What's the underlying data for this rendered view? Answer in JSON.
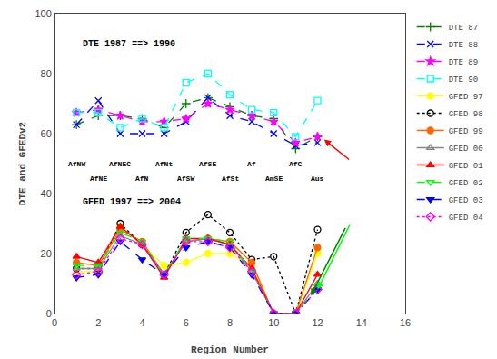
{
  "chart_data": {
    "type": "line",
    "x_label": "Region Number",
    "y_label": "DTE and GFEDv2",
    "x": [
      1,
      2,
      3,
      4,
      5,
      6,
      7,
      8,
      9,
      10,
      11,
      12
    ],
    "series": [
      {
        "name": "DTE 87",
        "color": "green",
        "marker": "plus",
        "line_style": "dashed",
        "values": [
          63,
          66,
          66,
          65,
          62,
          70,
          72,
          69,
          66,
          65,
          55,
          59
        ]
      },
      {
        "name": "DTE 88",
        "color": "blue",
        "marker": "x",
        "line_style": "dashed",
        "values": [
          63,
          71,
          60,
          60,
          60,
          64,
          72,
          66,
          64,
          60,
          56,
          57
        ]
      },
      {
        "name": "DTE 89",
        "color": "magenta",
        "marker": "star",
        "line_style": "dashed",
        "values": [
          67,
          68,
          66,
          64,
          64,
          65,
          70,
          68,
          66,
          64,
          57,
          59
        ]
      },
      {
        "name": "DTE 90",
        "color": "cyan",
        "marker": "square-open",
        "line_style": "dashed",
        "values": [
          67,
          67,
          62,
          65,
          62,
          77,
          80,
          73,
          68,
          67,
          59,
          71
        ]
      },
      {
        "name": "GFED 97",
        "color": "yellow",
        "marker": "circle",
        "line_style": "solid",
        "values": [
          14,
          14,
          29,
          23,
          16,
          17,
          20,
          20,
          16,
          0,
          0,
          20
        ]
      },
      {
        "name": "GFED 98",
        "color": "black",
        "marker": "circle-open",
        "line_style": "dotted",
        "values": [
          15,
          15,
          30,
          23,
          13,
          27,
          33,
          27,
          18,
          19,
          0,
          28
        ]
      },
      {
        "name": "GFED 99",
        "color": "#FF6600",
        "marker": "circle",
        "line_style": "solid",
        "values": [
          17,
          16,
          28,
          24,
          13,
          24,
          25,
          24,
          17,
          0,
          0,
          22
        ]
      },
      {
        "name": "GFED 00",
        "color": "#888888",
        "marker": "triangle-up-open",
        "line_style": "solid",
        "values": [
          15,
          15,
          26,
          23,
          13,
          24,
          25,
          23,
          14,
          0,
          0,
          10
        ]
      },
      {
        "name": "GFED 01",
        "color": "red",
        "marker": "triangle-up",
        "line_style": "solid",
        "values": [
          19,
          17,
          29,
          23,
          12,
          25,
          25,
          23,
          15,
          0,
          0,
          13
        ]
      },
      {
        "name": "GFED 02",
        "color": "lime",
        "marker": "triangle-down-open",
        "line_style": "dashed",
        "values": [
          16,
          16,
          27,
          24,
          13,
          25,
          25,
          24,
          14,
          0,
          0,
          9
        ]
      },
      {
        "name": "GFED 03",
        "color": "blue",
        "marker": "triangle-down",
        "line_style": "dashed",
        "values": [
          12,
          13,
          24,
          18,
          13,
          22,
          24,
          22,
          13,
          0,
          0,
          8
        ]
      },
      {
        "name": "GFED 04",
        "color": "magenta",
        "marker": "diamond-open",
        "line_style": "dotted",
        "values": [
          13,
          14,
          25,
          23,
          13,
          24,
          24,
          22,
          14,
          0,
          0,
          8
        ]
      }
    ],
    "annotations": [
      "DTE 1987 ==> 1990",
      "GFED 1997 ==> 2004",
      "AfNW",
      "AfNE",
      "AfNEC",
      "AfN",
      "AfNt",
      "AfSW",
      "AfSE",
      "AfSt",
      "Af",
      "AmSE",
      "AfC",
      "Aus"
    ],
    "xlim": [
      0,
      16
    ],
    "xticks": [
      0,
      2,
      4,
      6,
      8,
      10,
      12,
      14,
      16
    ],
    "ylim": [
      0,
      100
    ],
    "yticks": [
      0,
      20,
      40,
      60,
      80,
      100
    ],
    "grid": false,
    "legend": "right"
  }
}
